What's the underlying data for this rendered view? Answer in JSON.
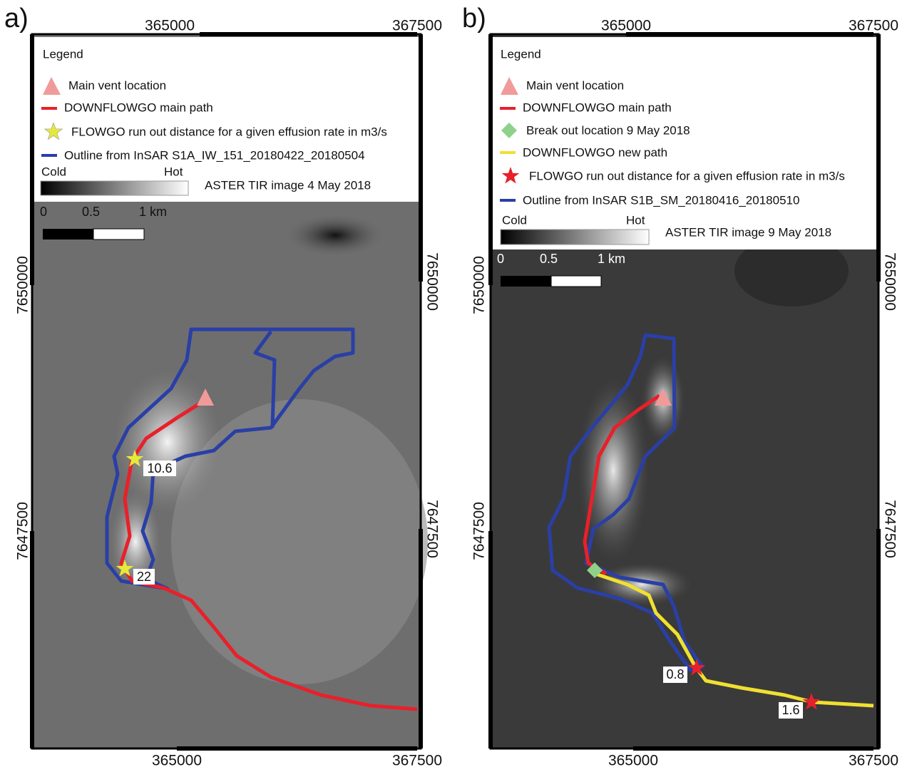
{
  "panels": [
    {
      "label": "a)",
      "top_ticks": [
        365000,
        367500
      ],
      "bottom_ticks": [
        365000,
        367500
      ],
      "left_ticks": [
        7650000,
        7647500
      ],
      "right_ticks": [
        7650000,
        7647500
      ],
      "legend": {
        "title": "Legend",
        "items": [
          "Main vent location",
          "DOWNFLOWGO main path",
          "FLOWGO run out distance for a given effusion rate in m3/s",
          "Outline from InSAR S1A_IW_151_20180422_20180504"
        ],
        "colorbar": {
          "low": "Cold",
          "high": "Hot"
        },
        "image": "ASTER TIR image 4 May 2018"
      },
      "scale_bar": [
        0,
        0.5,
        "1 km"
      ],
      "effusion_labels": [
        10.6,
        22
      ]
    },
    {
      "label": "b)",
      "top_ticks": [
        365000,
        367500
      ],
      "bottom_ticks": [
        365000,
        367500
      ],
      "left_ticks": [
        7650000,
        7647500
      ],
      "right_ticks": [
        7650000,
        7647500
      ],
      "legend": {
        "title": "Legend",
        "items": [
          "Main vent location",
          "DOWNFLOWGO main path",
          "Break out location 9 May 2018",
          "DOWNFLOWGO new path",
          "FLOWGO run out distance for a given effusion rate in m3/s",
          "Outline from InSAR S1B_SM_20180416_20180510"
        ],
        "colorbar": {
          "low": "Cold",
          "high": "Hot"
        },
        "image": "ASTER TIR image 9 May 2018"
      },
      "scale_bar": [
        0,
        0.5,
        "1 km"
      ],
      "effusion_labels": [
        0.8,
        1.6
      ]
    }
  ]
}
